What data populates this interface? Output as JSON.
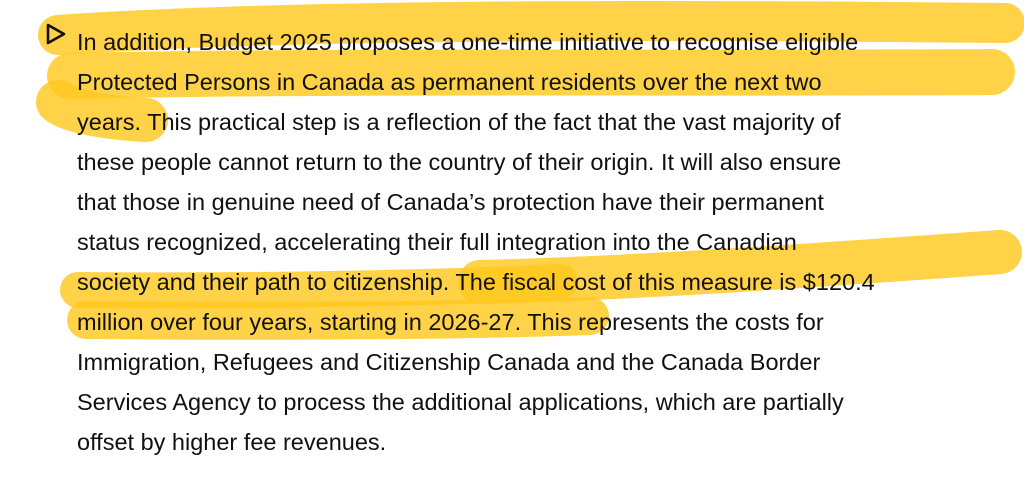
{
  "paragraph": {
    "lines": [
      [
        "In addition, Budget 2025 proposes a one-time initiative to recognise eligible",
        ""
      ],
      [
        "Protected Persons in Canada as permanent residents over the next two",
        ""
      ],
      [
        "years.",
        " This practical step is a reflection of the fact that the vast majority of"
      ],
      [
        "",
        "these people cannot return to the country of their origin. It will also ensure"
      ],
      [
        "",
        "that those in genuine need of Canada’s protection have their permanent"
      ],
      [
        "",
        "status recognized, accelerating their full integration into the Canadian"
      ],
      [
        "",
        "society and their path to citizenship. The fiscal cost of this measure is $120.4"
      ],
      [
        "",
        "million over four years, starting in 2026-27. This represents the costs for"
      ],
      [
        "",
        "Immigration, Refugees and Citizenship Canada and the Canada Border"
      ],
      [
        "",
        "Services Agency to process the additional applications, which are partially"
      ],
      [
        "",
        "offset by higher fee revenues."
      ]
    ]
  },
  "highlight": {
    "color": "#FFC81E"
  },
  "marker": {
    "icon": "play-triangle-icon"
  }
}
